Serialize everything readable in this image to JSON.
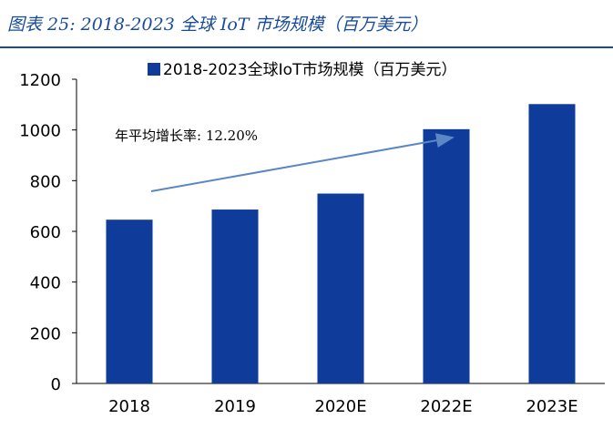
{
  "figure_title": "图表 25:  2018-2023 全球 IoT 市场规模（百万美元）",
  "chart_data": {
    "type": "bar",
    "categories": [
      "2018",
      "2019",
      "2020E",
      "2022E",
      "2023E"
    ],
    "series": [
      {
        "name": "2018-2023全球IoT市场规模（百万美元）",
        "values": [
          646,
          686,
          749,
          1003,
          1102
        ]
      }
    ],
    "ylim": [
      0,
      1200
    ],
    "yticks": [
      0,
      200,
      400,
      600,
      800,
      1000,
      1200
    ],
    "legend_position": "top-center",
    "grid": false,
    "bar_color": "#0f3c9a",
    "arrow_color": "#5b87c5",
    "annotation": "年平均增长率: 12.20%"
  }
}
